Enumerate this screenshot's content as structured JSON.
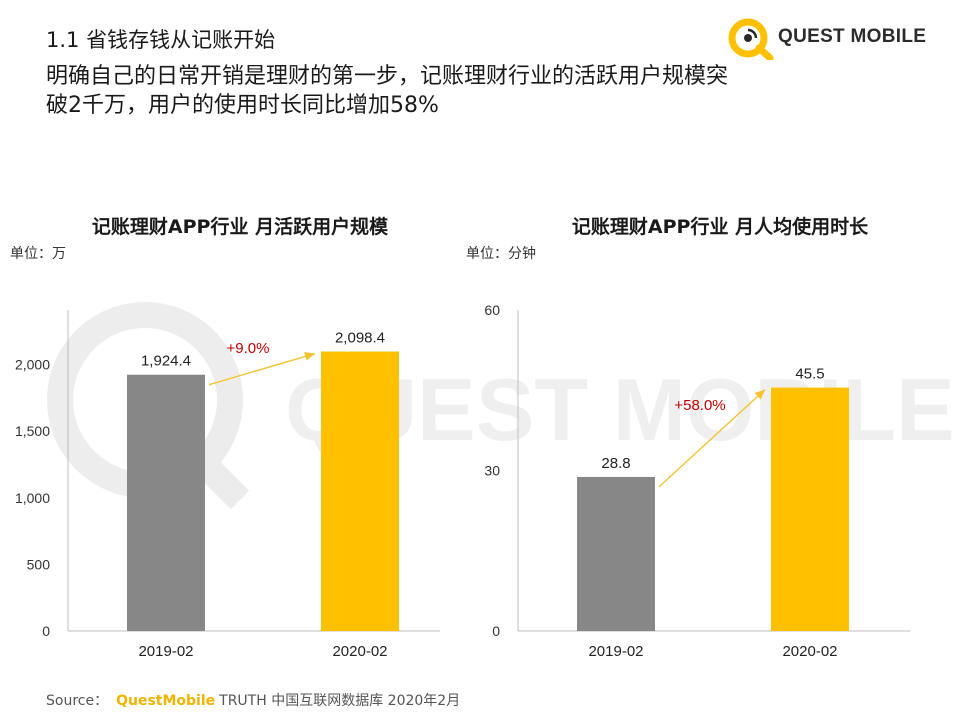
{
  "header": {
    "section_title": "1.1 省钱存钱从记账开始",
    "headline": "明确自己的日常开销是理财的第一步，记账理财行业的活跃用户规模突破2千万，用户的使用时长同比增加58%",
    "logo_text": "QUEST MOBILE"
  },
  "watermark": {
    "text": "QUEST MOBILE"
  },
  "colors": {
    "accent": "#ffc000",
    "previous": "#878787",
    "growth": "#c00000",
    "arrow": "#f4c430"
  },
  "chart_data": [
    {
      "type": "bar",
      "title": "记账理财APP行业 月活跃用户规模",
      "unit_label": "单位：万",
      "categories": [
        "2019-02",
        "2020-02"
      ],
      "values": [
        1924.4,
        2098.4
      ],
      "value_labels": [
        "1,924.4",
        "2,098.4"
      ],
      "yticks": [
        0,
        500,
        1000,
        1500,
        2000
      ],
      "ytick_labels": [
        "0",
        "500",
        "1,000",
        "1,500",
        "2,000"
      ],
      "ylim": [
        0,
        2200
      ],
      "growth_label": "+9.0%",
      "grid": false
    },
    {
      "type": "bar",
      "title": "记账理财APP行业 月人均使用时长",
      "unit_label": "单位：分钟",
      "categories": [
        "2019-02",
        "2020-02"
      ],
      "values": [
        28.8,
        45.5
      ],
      "value_labels": [
        "28.8",
        "45.5"
      ],
      "yticks": [
        0,
        30,
        60
      ],
      "ytick_labels": [
        "0",
        "30",
        "60"
      ],
      "ylim": [
        0,
        60
      ],
      "growth_label": "+58.0%",
      "grid": false
    }
  ],
  "footer": {
    "source_prefix": "Source：",
    "source_brand": "QuestMobile",
    "source_rest": "TRUTH 中国互联网数据库 2020年2月"
  }
}
